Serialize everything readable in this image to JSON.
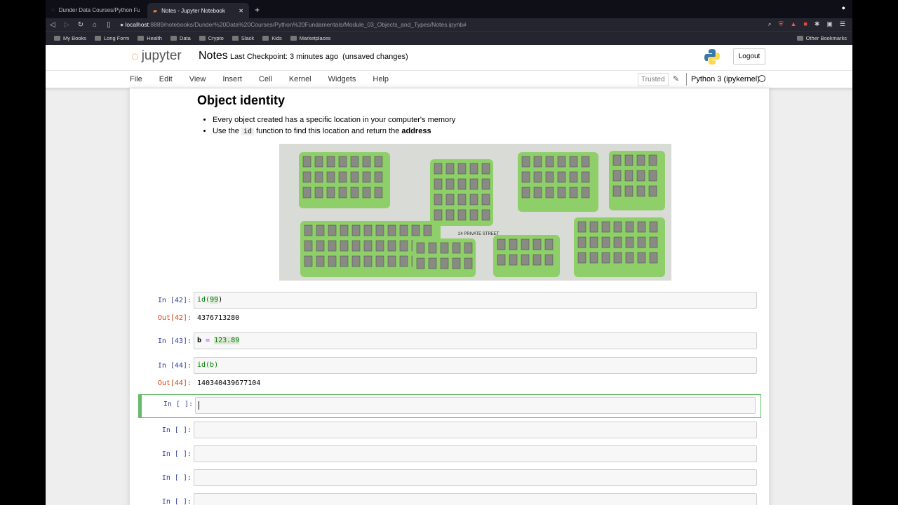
{
  "browser": {
    "tabs": [
      {
        "label": "Dunder Data Courses/Python Fund..."
      },
      {
        "label": "Notes - Jupyter Notebook"
      }
    ],
    "url_host": "localhost",
    "url_rest": ":8889/notebooks/Dunder%20Data%20Courses/Python%20Fundamentals/Module_03_Objects_and_Types/Notes.ipynb#",
    "bookmarks": [
      "My Books",
      "Long Form",
      "Health",
      "Data",
      "Crypto",
      "Slack",
      "Kids",
      "Marketplaces"
    ],
    "other_bookmarks": "Other Bookmarks"
  },
  "header": {
    "logo": "jupyter",
    "title": "Notes",
    "checkpoint": "Last Checkpoint: 3 minutes ago",
    "unsaved": "(unsaved changes)",
    "logout": "Logout"
  },
  "menu": [
    "File",
    "Edit",
    "View",
    "Insert",
    "Cell",
    "Kernel",
    "Widgets",
    "Help"
  ],
  "toolbar": {
    "trusted": "Trusted",
    "kernel": "Python 3 (ipykernel)"
  },
  "markdown": {
    "heading": "Object identity",
    "bullet1": "Every object created has a specific location in your computer's memory",
    "bullet2_pre": "Use the ",
    "bullet2_code": "id",
    "bullet2_mid": " function to find this location and return the ",
    "bullet2_bold": "address",
    "map_label": "24 PRIVATE STREET"
  },
  "cells": [
    {
      "in": "In [42]:",
      "code_fn": "id(",
      "code_num": "99",
      "code_end": ")",
      "out": "Out[42]:",
      "result": "4376713280"
    },
    {
      "in": "In [43]:",
      "code_var": "b ",
      "code_op": "=",
      "code_num": "123.89"
    },
    {
      "in": "In [44]:",
      "code": "id(b)",
      "out": "Out[44]:",
      "result": "140340439677104"
    },
    {
      "in": "In [ ]:"
    },
    {
      "in": "In [ ]:"
    },
    {
      "in": "In [ ]:"
    },
    {
      "in": "In [ ]:"
    },
    {
      "in": "In [ ]:"
    }
  ]
}
